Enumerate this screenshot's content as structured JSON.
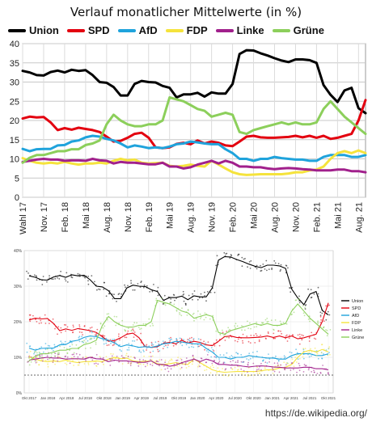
{
  "title": "Verlauf monatlicher Mittelwerte (in %)",
  "legend": [
    {
      "name": "Union",
      "color": "#000000"
    },
    {
      "name": "SPD",
      "color": "#e3000f"
    },
    {
      "name": "AfD",
      "color": "#1fa3dc"
    },
    {
      "name": "FDP",
      "color": "#f5e33c"
    },
    {
      "name": "Linke",
      "color": "#a1208c"
    },
    {
      "name": "Grüne",
      "color": "#8ccf5b"
    }
  ],
  "source": "https://de.wikipedia.org/",
  "chart_data": [
    {
      "type": "line",
      "title": "Verlauf monatlicher Mittelwerte (in %)",
      "ylim": [
        0,
        40
      ],
      "yticks": [
        0,
        5,
        10,
        15,
        20,
        25,
        30,
        35,
        40
      ],
      "grid": true,
      "xlabels": [
        "Wahl 17",
        "Nov. 17",
        "Feb. 18",
        "Mai 18",
        "Aug. 18",
        "Nov. 18",
        "Feb. 19",
        "Mai 19",
        "Aug. 19",
        "Nov. 19",
        "Feb. 20",
        "Mai 20",
        "Aug. 20",
        "Nov. 20",
        "Feb. 21",
        "Mai 21",
        "Aug. 21"
      ],
      "x_months": [
        0,
        1,
        2,
        3,
        4,
        5,
        6,
        7,
        8,
        9,
        10,
        11,
        12,
        13,
        14,
        15,
        16,
        17,
        18,
        19,
        20,
        21,
        22,
        23,
        24,
        25,
        26,
        27,
        28,
        29,
        30,
        31,
        32,
        33,
        34,
        35,
        36,
        37,
        38,
        39,
        40,
        41,
        42,
        43,
        44,
        45,
        46,
        47,
        48,
        49
      ],
      "series": [
        {
          "name": "Union",
          "color": "#000000",
          "values": [
            32.9,
            32.5,
            31.8,
            31.7,
            32.6,
            33.0,
            32.5,
            33.2,
            32.9,
            33.1,
            31.8,
            30.0,
            29.8,
            28.7,
            26.5,
            26.5,
            29.5,
            30.3,
            30.0,
            29.9,
            29.0,
            28.5,
            26.0,
            26.8,
            26.8,
            27.2,
            26.2,
            27.3,
            27.0,
            27.0,
            29.5,
            37.3,
            38.3,
            38.2,
            37.5,
            36.9,
            36.2,
            35.6,
            35.2,
            35.9,
            35.9,
            35.7,
            35.0,
            29.2,
            26.7,
            24.8,
            27.8,
            28.5,
            23.2,
            21.9
          ]
        },
        {
          "name": "SPD",
          "color": "#e3000f",
          "values": [
            20.5,
            21.0,
            20.8,
            20.9,
            19.5,
            17.5,
            18.0,
            17.6,
            18.1,
            17.8,
            17.5,
            17.0,
            15.8,
            14.5,
            14.7,
            15.5,
            16.5,
            16.8,
            15.5,
            13.0,
            12.8,
            13.0,
            13.9,
            14.2,
            13.8,
            14.8,
            14.0,
            14.5,
            14.2,
            13.5,
            13.3,
            14.5,
            15.8,
            16.0,
            15.6,
            15.5,
            15.5,
            15.6,
            15.7,
            16.0,
            15.6,
            16.0,
            15.5,
            16.0,
            15.2,
            15.5,
            16.0,
            16.5,
            20.0,
            25.3
          ]
        },
        {
          "name": "AfD",
          "color": "#1fa3dc",
          "values": [
            12.6,
            12.0,
            12.5,
            12.6,
            12.6,
            13.5,
            13.6,
            14.5,
            14.8,
            15.6,
            16.0,
            15.8,
            15.2,
            14.8,
            14.0,
            13.0,
            13.5,
            13.2,
            12.8,
            13.0,
            12.8,
            13.2,
            13.8,
            14.0,
            14.5,
            14.3,
            14.0,
            13.8,
            13.8,
            12.5,
            11.5,
            10.0,
            10.0,
            9.5,
            10.0,
            10.0,
            10.5,
            10.2,
            10.0,
            9.8,
            9.8,
            9.5,
            9.5,
            10.5,
            11.0,
            11.0,
            11.0,
            10.5,
            10.5,
            11.0
          ]
        },
        {
          "name": "FDP",
          "color": "#f5e33c",
          "values": [
            10.2,
            9.5,
            9.0,
            8.8,
            9.0,
            8.8,
            9.2,
            8.8,
            8.5,
            8.8,
            8.8,
            9.0,
            8.8,
            9.5,
            10.0,
            9.6,
            9.8,
            9.0,
            8.8,
            8.9,
            9.0,
            8.2,
            8.0,
            8.2,
            8.5,
            8.2,
            8.0,
            9.5,
            8.5,
            7.5,
            6.5,
            6.0,
            5.8,
            5.9,
            6.0,
            6.0,
            6.0,
            6.0,
            6.2,
            6.5,
            6.5,
            7.0,
            7.2,
            8.0,
            10.0,
            11.5,
            12.0,
            11.5,
            12.2,
            11.5
          ]
        },
        {
          "name": "Linke",
          "color": "#a1208c",
          "values": [
            9.2,
            9.5,
            9.8,
            10.0,
            9.8,
            9.8,
            9.5,
            9.6,
            9.6,
            9.5,
            10.0,
            9.6,
            9.5,
            8.8,
            9.2,
            9.0,
            9.0,
            8.8,
            8.6,
            8.6,
            9.0,
            8.0,
            8.0,
            7.5,
            7.8,
            8.5,
            9.0,
            9.5,
            8.8,
            9.5,
            9.0,
            8.0,
            8.0,
            7.8,
            7.8,
            7.5,
            7.3,
            7.5,
            7.6,
            7.5,
            7.3,
            7.2,
            7.0,
            7.0,
            7.0,
            7.2,
            7.2,
            6.8,
            6.8,
            6.5
          ]
        },
        {
          "name": "Grüne",
          "color": "#8ccf5b",
          "values": [
            9.0,
            10.3,
            11.0,
            11.0,
            11.5,
            12.0,
            12.0,
            12.5,
            12.5,
            13.6,
            14.0,
            14.8,
            19.0,
            21.5,
            20.0,
            19.0,
            18.5,
            18.5,
            19.0,
            19.0,
            20.0,
            26.0,
            25.5,
            25.0,
            24.0,
            23.0,
            22.5,
            21.0,
            21.5,
            22.0,
            21.5,
            17.0,
            16.5,
            17.5,
            18.0,
            18.5,
            19.0,
            19.5,
            19.0,
            19.5,
            19.0,
            19.0,
            19.5,
            23.0,
            25.0,
            23.0,
            21.0,
            19.5,
            18.0,
            16.5
          ]
        }
      ]
    },
    {
      "type": "scatter",
      "ylim": [
        0,
        40
      ],
      "yticks": [
        "0%",
        "10%",
        "20%",
        "30%",
        "40%"
      ],
      "grid": true,
      "legend_position": "right",
      "xlabels": [
        "Okt 2017",
        "Jan 2018",
        "Apr 2018",
        "Jul 2018",
        "Okt 2018",
        "Jan 2019",
        "Apr 2019",
        "Jul 2019",
        "Okt 2019",
        "Jan 2020",
        "Apr 2020",
        "Jul 2020",
        "Okt 2020",
        "Jan 2021",
        "Apr 2021",
        "Jul 2021",
        "Okt 2021"
      ],
      "legend": [
        "Union",
        "SPD",
        "AfD",
        "FDP",
        "Linke",
        "Grüne"
      ]
    }
  ]
}
